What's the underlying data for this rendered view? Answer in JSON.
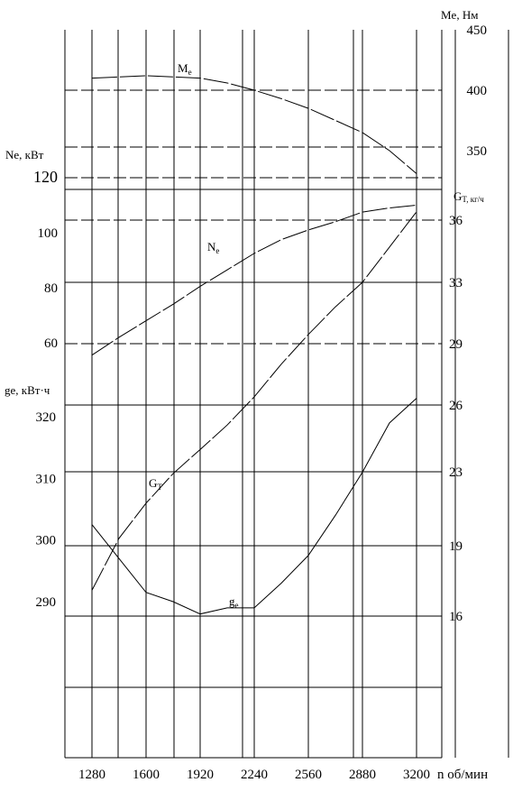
{
  "chart_data": {
    "type": "line",
    "x_label": "n об/мин",
    "x_ticks": [
      1280,
      1600,
      1920,
      2240,
      2560,
      2880,
      3200
    ],
    "x_range": [
      1120,
      3360
    ],
    "axes": {
      "me": {
        "label": "Me, Нм",
        "ticks": [
          "450",
          "400",
          "350"
        ],
        "range": [
          450,
          300
        ]
      },
      "ne": {
        "label": "Ne, кВт",
        "ticks": [
          "120",
          "100",
          "80",
          "60"
        ],
        "range": [
          120,
          60
        ]
      },
      "ge": {
        "label_main": "ge,",
        "label_unit": " кВт·ч",
        "ticks": [
          "320",
          "310",
          "300",
          "290"
        ],
        "range": [
          320,
          290
        ]
      },
      "gt": {
        "label_main": "G",
        "label_sub": "T, кг/ч",
        "ticks": [
          "36",
          "33",
          "29",
          "26",
          "23",
          "19",
          "16"
        ],
        "range": [
          36,
          16
        ]
      }
    },
    "series": [
      {
        "name": "Me",
        "axis": "me",
        "label_main": "M",
        "label_sub": "e",
        "style": "long-dash",
        "x": [
          1280,
          1440,
          1600,
          1760,
          1920,
          2080,
          2240,
          2400,
          2560,
          2720,
          2880,
          3040,
          3200
        ],
        "y": [
          410,
          411,
          412,
          411,
          410,
          406,
          400,
          393,
          385,
          375,
          365,
          350,
          331
        ]
      },
      {
        "name": "Ne",
        "axis": "ne",
        "label_main": "N",
        "label_sub": "e",
        "style": "long-dash",
        "x": [
          1280,
          1440,
          1600,
          1760,
          1920,
          2080,
          2240,
          2400,
          2560,
          2720,
          2880,
          3040,
          3200
        ],
        "y": [
          55.5,
          62,
          68,
          74,
          80.5,
          86.5,
          92.5,
          97.5,
          101,
          104,
          107.5,
          109,
          110
        ]
      },
      {
        "name": "GT",
        "axis": "gt",
        "label_main": "G",
        "label_sub": "T",
        "style": "long-dash",
        "x": [
          1280,
          1440,
          1600,
          1760,
          1920,
          2080,
          2240,
          2400,
          2560,
          2720,
          2880,
          3040,
          3200
        ],
        "y": [
          17.1,
          19.4,
          21.3,
          22.9,
          24.0,
          25.1,
          26.4,
          28.0,
          29.6,
          31.4,
          33.0,
          34.7,
          36.4
        ]
      },
      {
        "name": "ge",
        "axis": "ge",
        "label_main": "g",
        "label_sub": "e",
        "style": "solid",
        "x": [
          1280,
          1440,
          1600,
          1760,
          1920,
          2080,
          2240,
          2400,
          2560,
          2720,
          2880,
          3040,
          3200
        ],
        "y": [
          302.5,
          297,
          291.5,
          290,
          288,
          289,
          289,
          293,
          297.5,
          304,
          311,
          319,
          323
        ]
      }
    ],
    "grid": true
  }
}
